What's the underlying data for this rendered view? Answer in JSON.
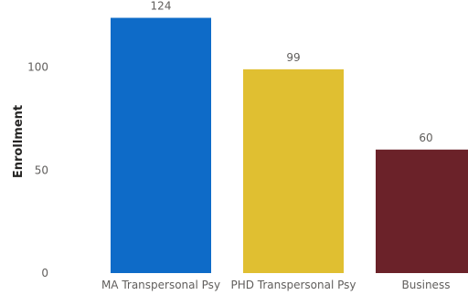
{
  "chart_data": {
    "type": "bar",
    "categories": [
      "MA Transpersonal Psy",
      "PHD Transpersonal Psy",
      "Business"
    ],
    "values": [
      124,
      99,
      60
    ],
    "colors": [
      "#0e6bc8",
      "#e0bf31",
      "#6b2229"
    ],
    "ylabel": "Enrollment",
    "xlabel": "",
    "ylim": [
      0,
      130
    ],
    "yticks": [
      0,
      50,
      100
    ],
    "grid": false,
    "data_labels": true
  }
}
